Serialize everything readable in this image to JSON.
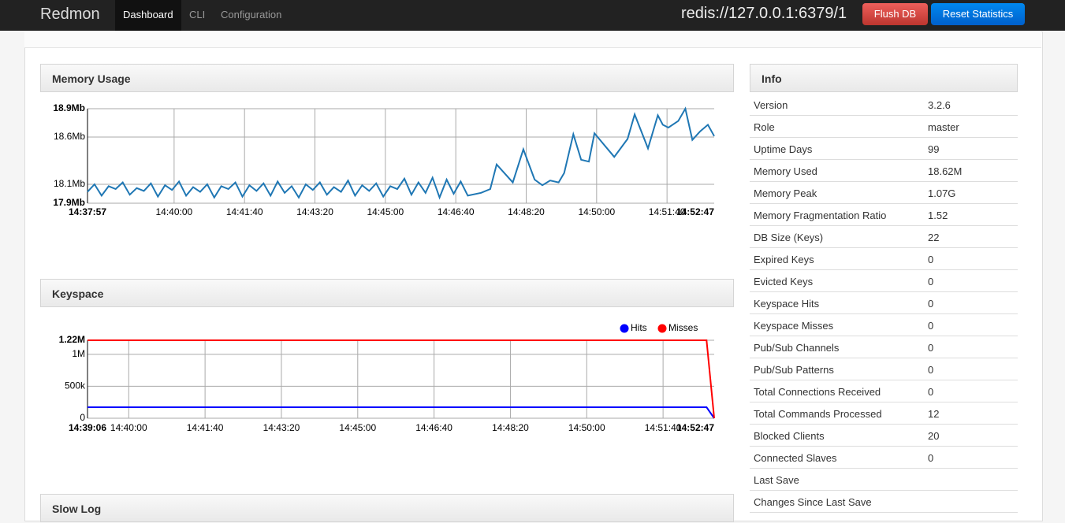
{
  "navbar": {
    "brand": "Redmon",
    "nav": [
      "Dashboard",
      "CLI",
      "Configuration"
    ],
    "active": 0,
    "connection": "redis://127.0.0.1:6379/1",
    "buttons": [
      "Flush DB",
      "Reset Statistics"
    ]
  },
  "chart_data": [
    {
      "type": "line",
      "title": "Memory Usage",
      "color": "#1f77b4",
      "grid": true,
      "x": [
        "14:37:57",
        "14:38:07",
        "14:38:17",
        "14:38:27",
        "14:38:37",
        "14:38:47",
        "14:38:57",
        "14:39:07",
        "14:39:17",
        "14:39:27",
        "14:39:37",
        "14:39:47",
        "14:39:57",
        "14:40:07",
        "14:40:17",
        "14:40:27",
        "14:40:37",
        "14:40:47",
        "14:40:57",
        "14:41:07",
        "14:41:17",
        "14:41:27",
        "14:41:37",
        "14:41:47",
        "14:41:57",
        "14:42:07",
        "14:42:17",
        "14:42:27",
        "14:42:37",
        "14:42:47",
        "14:42:57",
        "14:43:07",
        "14:43:17",
        "14:43:27",
        "14:43:37",
        "14:43:47",
        "14:43:57",
        "14:44:07",
        "14:44:17",
        "14:44:27",
        "14:44:37",
        "14:44:47",
        "14:44:57",
        "14:45:07",
        "14:45:17",
        "14:45:27",
        "14:45:37",
        "14:45:47",
        "14:45:57",
        "14:46:07",
        "14:46:17",
        "14:46:27",
        "14:46:37",
        "14:46:47",
        "14:46:57",
        "14:47:16",
        "14:47:29",
        "14:47:38",
        "14:48:01",
        "14:48:16",
        "14:48:32",
        "14:48:43",
        "14:48:54",
        "14:49:06",
        "14:49:14",
        "14:49:27",
        "14:49:38",
        "14:49:49",
        "14:49:57",
        "14:50:25",
        "14:50:44",
        "14:50:54",
        "14:51:13",
        "14:51:27",
        "14:51:34",
        "14:51:42",
        "14:51:56",
        "14:52:06",
        "14:52:16",
        "14:52:27",
        "14:52:38",
        "14:52:47"
      ],
      "values": [
        18.02,
        18.1,
        17.98,
        18.08,
        18.05,
        18.12,
        17.99,
        18.06,
        18.03,
        18.11,
        17.97,
        18.09,
        18.04,
        18.13,
        17.98,
        18.07,
        18.02,
        18.1,
        17.96,
        18.08,
        18.05,
        18.12,
        17.97,
        18.09,
        18.03,
        18.11,
        17.98,
        18.13,
        18.01,
        18.08,
        17.96,
        18.1,
        18.04,
        18.12,
        17.99,
        18.07,
        18.02,
        18.14,
        17.98,
        18.09,
        18.03,
        18.11,
        17.97,
        18.08,
        18.05,
        18.16,
        17.99,
        18.12,
        18.01,
        18.17,
        17.96,
        18.15,
        18.0,
        18.13,
        17.98,
        18.01,
        18.05,
        18.31,
        18.12,
        18.47,
        18.15,
        18.09,
        18.14,
        18.12,
        18.22,
        18.63,
        18.36,
        18.34,
        18.64,
        18.39,
        18.58,
        18.84,
        18.48,
        18.83,
        18.73,
        18.7,
        18.77,
        18.9,
        18.57,
        18.66,
        18.73,
        18.61
      ],
      "xlim": [
        "14:37:57",
        "14:52:47"
      ],
      "xticks": [
        "14:40:00",
        "14:41:40",
        "14:43:20",
        "14:45:00",
        "14:46:40",
        "14:48:20",
        "14:50:00",
        "14:51:40"
      ],
      "ylim": [
        17.9,
        18.9
      ],
      "yticks": [
        {
          "value": 17.9,
          "label": "17.9Mb"
        },
        {
          "value": 18.1,
          "label": "18.1Mb"
        },
        {
          "value": 18.6,
          "label": "18.6Mb"
        },
        {
          "value": 18.9,
          "label": "18.9Mb"
        }
      ]
    },
    {
      "type": "line",
      "title": "Keyspace",
      "grid": true,
      "legend": "top-right",
      "x": [
        "14:39:06",
        "14:52:37",
        "14:52:47"
      ],
      "series": [
        {
          "name": "Hits",
          "color": "#0000ff",
          "values": [
            173000,
            173000,
            0
          ]
        },
        {
          "name": "Misses",
          "color": "#ff0000",
          "values": [
            1220000,
            1220000,
            0
          ]
        }
      ],
      "xlim": [
        "14:39:06",
        "14:52:47"
      ],
      "xticks": [
        "14:40:00",
        "14:41:40",
        "14:43:20",
        "14:45:00",
        "14:46:40",
        "14:48:20",
        "14:50:00",
        "14:51:40"
      ],
      "ylim": [
        0,
        1220000
      ],
      "yticks": [
        0,
        {
          "value": 500000,
          "label": "500k"
        },
        {
          "value": 1000000,
          "label": "1M"
        },
        {
          "value": 1220000,
          "label": "1.22M"
        }
      ]
    }
  ],
  "slow_log": {
    "title": "Slow Log"
  },
  "info": {
    "title": "Info",
    "rows": [
      {
        "label": "Version",
        "value": "3.2.6"
      },
      {
        "label": "Role",
        "value": "master"
      },
      {
        "label": "Uptime Days",
        "value": "99"
      },
      {
        "label": "Memory Used",
        "value": "18.62M"
      },
      {
        "label": "Memory Peak",
        "value": "1.07G"
      },
      {
        "label": "Memory Fragmentation Ratio",
        "value": "1.52"
      },
      {
        "label": "DB Size (Keys)",
        "value": "22"
      },
      {
        "label": "Expired Keys",
        "value": "0"
      },
      {
        "label": "Evicted Keys",
        "value": "0"
      },
      {
        "label": "Keyspace Hits",
        "value": "0"
      },
      {
        "label": "Keyspace Misses",
        "value": "0"
      },
      {
        "label": "Pub/Sub Channels",
        "value": "0"
      },
      {
        "label": "Pub/Sub Patterns",
        "value": "0"
      },
      {
        "label": "Total Connections Received",
        "value": "0"
      },
      {
        "label": "Total Commands Processed",
        "value": "12"
      },
      {
        "label": "Blocked Clients",
        "value": "20"
      },
      {
        "label": "Connected Slaves",
        "value": "0"
      },
      {
        "label": "Last Save"
      },
      {
        "label": "Changes Since Last Save"
      }
    ]
  }
}
